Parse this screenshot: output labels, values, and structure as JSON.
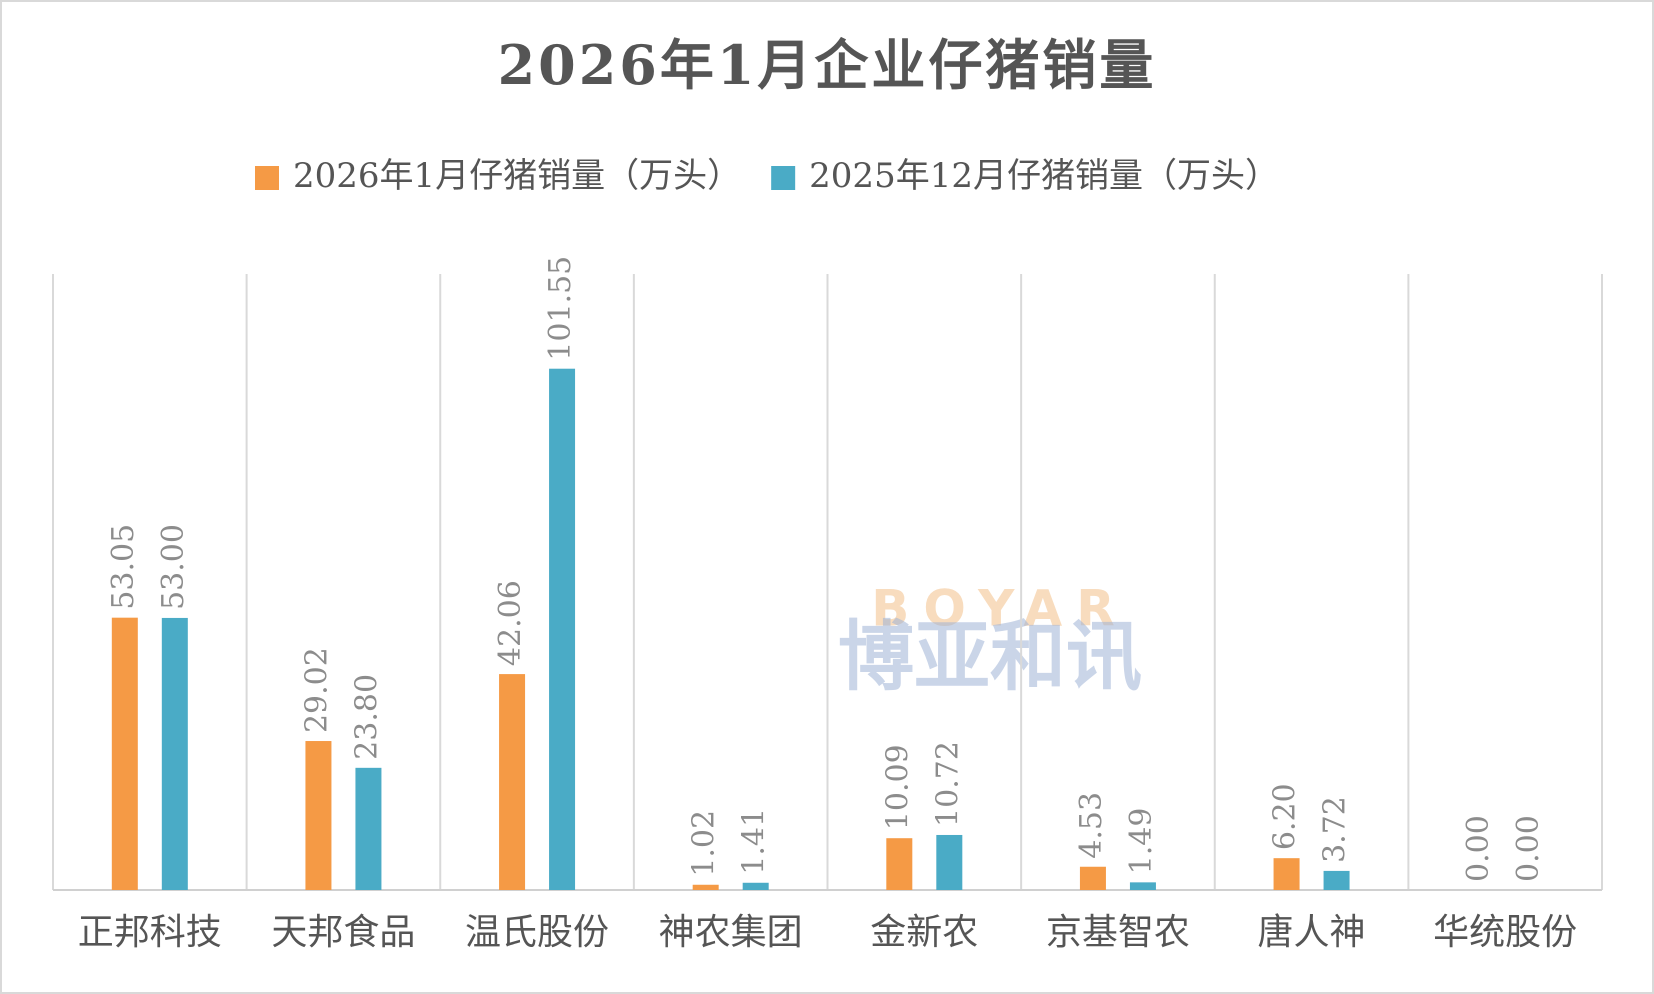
{
  "chart_data": {
    "type": "bar",
    "title": "2026年1月企业仔猪销量",
    "categories": [
      "正邦科技",
      "天邦食品",
      "温氏股份",
      "神农集团",
      "金新农",
      "京基智农",
      "唐人神",
      "华统股份"
    ],
    "series": [
      {
        "name": "2026年1月仔猪销量（万头）",
        "color": "#f59a45",
        "values": [
          53.05,
          29.02,
          42.06,
          1.02,
          10.09,
          4.53,
          6.2,
          0
        ],
        "value_labels": [
          "53.05",
          "29.02",
          "42.06",
          "1.02",
          "10.09",
          "4.53",
          "6.20",
          "0.00"
        ]
      },
      {
        "name": "2025年12月仔猪销量（万头）",
        "color": "#4aabc6",
        "values": [
          53,
          23.8,
          101.55,
          1.41,
          10.72,
          1.49,
          3.72,
          0
        ],
        "value_labels": [
          "53.00",
          "23.80",
          "101.55",
          "1.41",
          "10.72",
          "1.49",
          "3.72",
          "0.00"
        ]
      }
    ],
    "ylim": [
      0,
      120
    ],
    "watermark": [
      "BOYAR",
      "博亚和讯"
    ]
  }
}
